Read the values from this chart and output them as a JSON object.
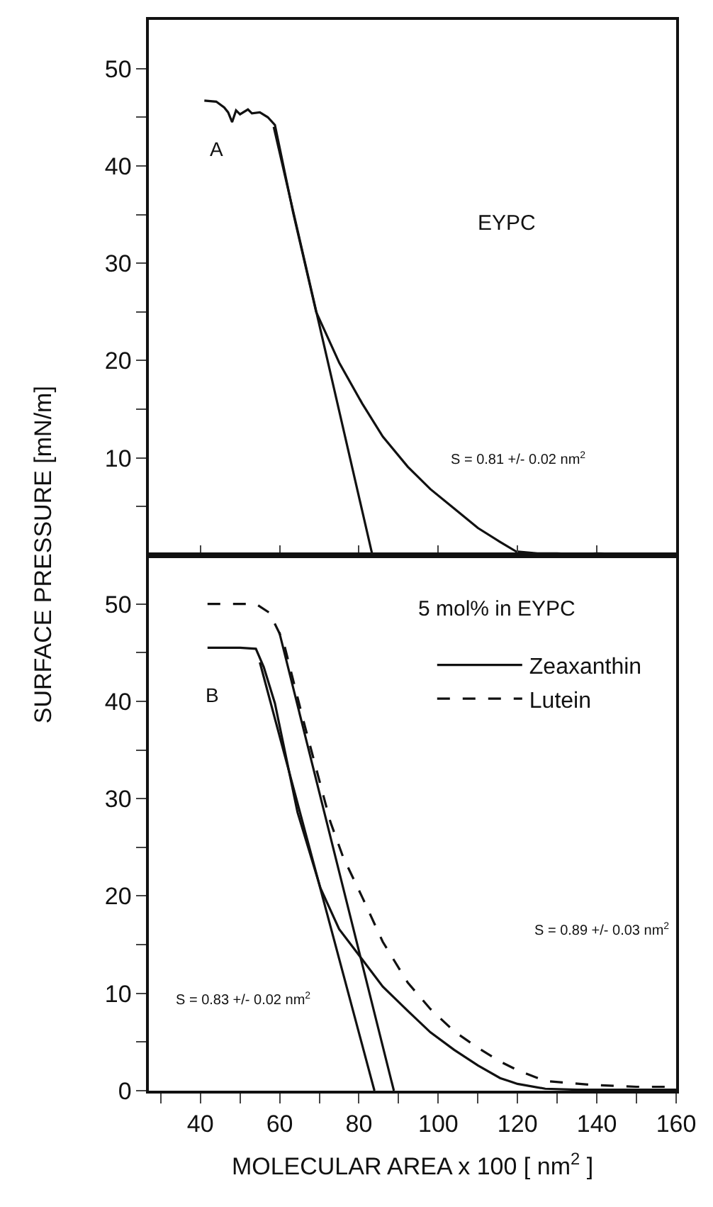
{
  "chart_data": [
    {
      "type": "line",
      "ylabel": "SURFACE PRESSURE [mN/m]",
      "xlim": [
        27,
        160
      ],
      "ylim": [
        0,
        55
      ],
      "xticks": [
        40,
        60,
        80,
        100,
        120,
        140,
        160
      ],
      "yticks": [
        {
          "value": 5,
          "label": null
        },
        10,
        {
          "value": 15,
          "label": null
        },
        20,
        {
          "value": 25,
          "label": null
        },
        30,
        {
          "value": 35,
          "label": null
        },
        40,
        {
          "value": 45,
          "label": null
        },
        50
      ],
      "tick_labels": "y",
      "grid": false,
      "legend": false,
      "marker": "none",
      "annotations": [
        "A",
        "EYPC",
        "S = 0.81 +/- 0.02 nm$^{2}$"
      ],
      "series": [
        {
          "color": "#111111",
          "line_style": "solid",
          "x": [
            41,
            44,
            46,
            47,
            48,
            49,
            50,
            52,
            53,
            55,
            57,
            58.8,
            63.4,
            69.2,
            75,
            80.8,
            86,
            92.3,
            98,
            104,
            110,
            115.5,
            119.6,
            125,
            130,
            135,
            140,
            150,
            160
          ],
          "values": [
            46.7,
            46.6,
            46,
            45.5,
            44.5,
            45.7,
            45.3,
            45.8,
            45.4,
            45.5,
            45,
            44.2,
            35.2,
            25,
            19.8,
            15.6,
            12.2,
            9.1,
            6.8,
            4.8,
            2.8,
            1.4,
            0.4,
            0.2,
            0.2,
            0.1,
            0.2,
            0.1,
            0
          ]
        },
        {
          "color": "#111111",
          "line_style": "solid",
          "x": [
            58.5,
            83.4
          ],
          "values": [
            44,
            0
          ]
        }
      ]
    },
    {
      "type": "line",
      "xlabel": "MOLECULAR AREA x 100 [ nm$^{2}$ ]",
      "xlim": [
        27,
        160
      ],
      "ylim": [
        0,
        55
      ],
      "xticks": [
        {
          "value": 30,
          "label": null
        },
        40,
        {
          "value": 50,
          "label": null
        },
        60,
        {
          "value": 70,
          "label": null
        },
        80,
        {
          "value": 90,
          "label": null
        },
        100,
        {
          "value": 110,
          "label": null
        },
        120,
        {
          "value": 130,
          "label": null
        },
        140,
        {
          "value": 150,
          "label": null
        },
        160
      ],
      "yticks": [
        0,
        {
          "value": 5,
          "label": null
        },
        10,
        {
          "value": 15,
          "label": null
        },
        20,
        {
          "value": 25,
          "label": null
        },
        30,
        {
          "value": 35,
          "label": null
        },
        40,
        {
          "value": 45,
          "label": null
        },
        50
      ],
      "grid": false,
      "legend": "top right",
      "marker": "none",
      "annotations": [
        "B",
        "5 mol% in EYPC",
        "S = 0.83 +/- 0.02 nm$^{2}$",
        "S = 0.89 +/- 0.03 nm$^{2}$"
      ],
      "series": [
        {
          "name": "Zeaxanthin",
          "color": "#111111",
          "line_style": "solid",
          "x": [
            41.8,
            46,
            50,
            54,
            56,
            58.8,
            64.5,
            70.3,
            75,
            80.8,
            86,
            92.3,
            98,
            104,
            110,
            115.6,
            120,
            127,
            135,
            145,
            160
          ],
          "values": [
            45.5,
            45.5,
            45.5,
            45.4,
            43.5,
            39.8,
            28.6,
            20.8,
            16.6,
            13.5,
            10.7,
            8.2,
            6,
            4.2,
            2.6,
            1.3,
            0.7,
            0.2,
            0.1,
            0.1,
            0.1
          ]
        },
        {
          "name": "Lutein",
          "color": "#111111",
          "line_style": "dashed",
          "x": [
            41.8,
            46,
            50,
            54,
            57.4,
            60.9,
            66,
            72.8,
            76,
            80.8,
            86,
            92.3,
            98,
            104,
            110,
            115.6,
            120,
            127,
            138.6,
            150,
            158
          ],
          "values": [
            50,
            50,
            50,
            50,
            49.1,
            46.2,
            38,
            27.6,
            24,
            19.9,
            15.3,
            11.1,
            8.4,
            6.1,
            4.4,
            3,
            2.1,
            1,
            0.6,
            0.4,
            0.4
          ]
        },
        {
          "color": "#111111",
          "line_style": "solid",
          "x": [
            55,
            83.9
          ],
          "values": [
            44,
            0
          ]
        },
        {
          "color": "#111111",
          "line_style": "solid",
          "x": [
            59.9,
            88.8
          ],
          "values": [
            47.1,
            0
          ]
        }
      ]
    }
  ]
}
